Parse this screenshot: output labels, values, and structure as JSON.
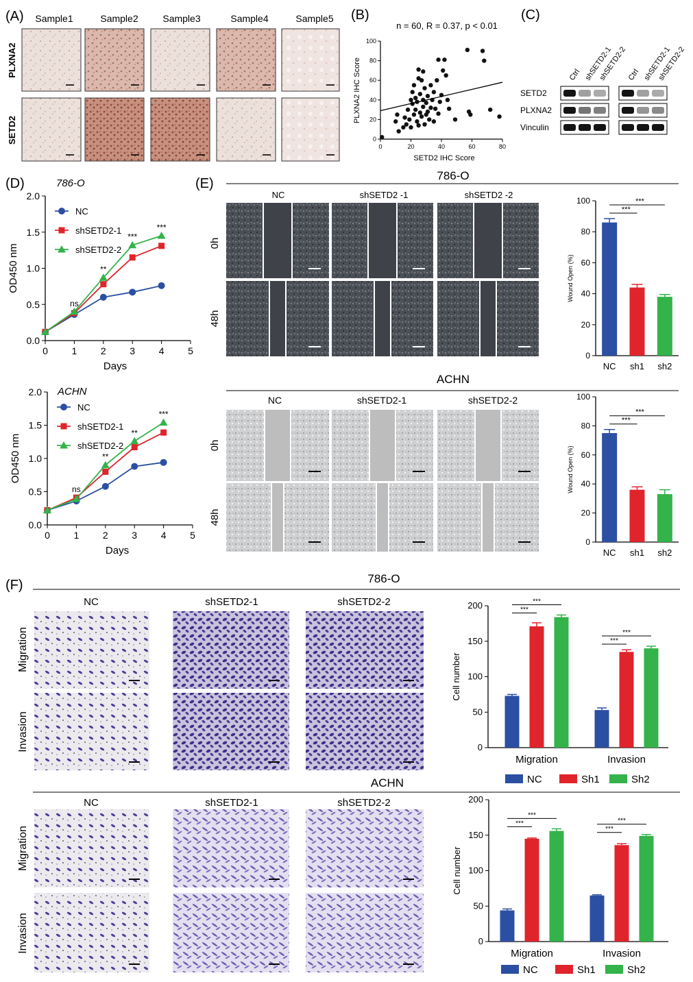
{
  "panels": {
    "a": "(A)",
    "b": "(B)",
    "c": "(C)",
    "d": "(D)",
    "e": "(E)",
    "f": "(F)"
  },
  "colors": {
    "blue": "#2b4fa3",
    "red": "#e0242b",
    "green": "#33b34a",
    "black": "#1a1a1a",
    "ihc_light": "#e9d9d3",
    "ihc_dark": "#b57b68",
    "scratch_dark": "#3f4248",
    "scratch_light": "#c9c9c9",
    "crystal": "#5b4fa5"
  },
  "panel_a": {
    "samples": [
      "Sample1",
      "Sample2",
      "Sample3",
      "Sample4",
      "Sample5"
    ],
    "rows": [
      "PLXNA2",
      "SETD2"
    ]
  },
  "panel_c": {
    "lane_labels": [
      "Ctrl",
      "shSETD2-1",
      "shSETD2-2"
    ],
    "proteins": [
      "SETD2",
      "PLXNA2",
      "Vinculin"
    ],
    "band_intensity": {
      "SETD2": [
        1.0,
        0.35,
        0.3,
        1.0,
        0.35,
        0.3
      ],
      "PLXNA2": [
        1.0,
        0.55,
        0.5,
        1.0,
        0.4,
        0.45
      ],
      "Vinculin": [
        1.0,
        1.0,
        1.0,
        1.0,
        1.0,
        1.0
      ]
    }
  },
  "panel_e": {
    "cell_786o": "786-O",
    "cell_achn": "ACHN",
    "groups_786o": [
      "NC",
      "shSETD2 -1",
      "shSETD2 -2"
    ],
    "groups_achn": [
      "NC",
      "shSETD2-1",
      "shSETD2-2"
    ],
    "times": [
      "0h",
      "48h"
    ]
  },
  "panel_f": {
    "cell_786o": "786-O",
    "cell_achn": "ACHN",
    "groups": [
      "NC",
      "shSETD2-1",
      "shSETD2-2"
    ],
    "rows": [
      "Migration",
      "Invasion"
    ]
  },
  "chart_data": [
    {
      "id": "B",
      "type": "scatter",
      "title": "n = 60, R = 0.37, p < 0.01",
      "xlabel": "SETD2 IHC Score",
      "ylabel": "PLXNA2 IHC Score",
      "xlim": [
        0,
        80
      ],
      "ylim": [
        0,
        100
      ],
      "xticks": [
        0,
        20,
        40,
        60,
        80
      ],
      "yticks": [
        0,
        20,
        40,
        60,
        80,
        100
      ],
      "trendline": [
        [
          0,
          29
        ],
        [
          80,
          58
        ]
      ],
      "points": [
        [
          1,
          2
        ],
        [
          10,
          18
        ],
        [
          11,
          25
        ],
        [
          12,
          8
        ],
        [
          15,
          12
        ],
        [
          16,
          22
        ],
        [
          17,
          15
        ],
        [
          18,
          30
        ],
        [
          19,
          20
        ],
        [
          20,
          12
        ],
        [
          20,
          40
        ],
        [
          21,
          36
        ],
        [
          21,
          48
        ],
        [
          22,
          25
        ],
        [
          22,
          55
        ],
        [
          23,
          30
        ],
        [
          23,
          42
        ],
        [
          24,
          18
        ],
        [
          24,
          38
        ],
        [
          25,
          14
        ],
        [
          25,
          62
        ],
        [
          25,
          71
        ],
        [
          26,
          27
        ],
        [
          26,
          46
        ],
        [
          27,
          23
        ],
        [
          27,
          60
        ],
        [
          28,
          33
        ],
        [
          28,
          40
        ],
        [
          28,
          69
        ],
        [
          29,
          15
        ],
        [
          29,
          52
        ],
        [
          30,
          25
        ],
        [
          30,
          37
        ],
        [
          31,
          28
        ],
        [
          31,
          44
        ],
        [
          32,
          20
        ],
        [
          33,
          32
        ],
        [
          33,
          55
        ],
        [
          34,
          40
        ],
        [
          35,
          18
        ],
        [
          35,
          48
        ],
        [
          36,
          31
        ],
        [
          37,
          60
        ],
        [
          38,
          26
        ],
        [
          38,
          81
        ],
        [
          39,
          38
        ],
        [
          40,
          45
        ],
        [
          41,
          70
        ],
        [
          42,
          81
        ],
        [
          43,
          65
        ],
        [
          44,
          40
        ],
        [
          45,
          31
        ],
        [
          49,
          20
        ],
        [
          57,
          91
        ],
        [
          58,
          28
        ],
        [
          59,
          25
        ],
        [
          67,
          90
        ],
        [
          68,
          80
        ],
        [
          72,
          30
        ],
        [
          78,
          23
        ]
      ]
    },
    {
      "id": "D-786O",
      "type": "line",
      "title": "786-O",
      "xlabel": "Days",
      "ylabel": "OD450 nm",
      "xlim": [
        0,
        5
      ],
      "ylim": [
        0,
        2.0
      ],
      "xticks": [
        0,
        1,
        2,
        3,
        4,
        5
      ],
      "yticks": [
        0.0,
        0.5,
        1.0,
        1.5,
        2.0
      ],
      "ytick_labels": [
        "0.0",
        "0.5",
        "1.0",
        "1.5",
        "2.0"
      ],
      "x": [
        0,
        1,
        2,
        3,
        4
      ],
      "series": [
        {
          "name": "NC",
          "values": [
            0.12,
            0.36,
            0.6,
            0.67,
            0.76
          ]
        },
        {
          "name": "shSETD2-1",
          "values": [
            0.12,
            0.38,
            0.78,
            1.15,
            1.31
          ]
        },
        {
          "name": "shSETD2-2",
          "values": [
            0.12,
            0.4,
            0.87,
            1.32,
            1.45
          ]
        }
      ],
      "annotations": [
        {
          "x": 1,
          "text": "ns"
        },
        {
          "x": 2,
          "text": "**"
        },
        {
          "x": 3,
          "text": "***"
        },
        {
          "x": 4,
          "text": "***"
        }
      ]
    },
    {
      "id": "D-ACHN",
      "type": "line",
      "title": "ACHN",
      "xlabel": "Days",
      "ylabel": "OD450 nm",
      "xlim": [
        0,
        5
      ],
      "ylim": [
        0,
        2.0
      ],
      "xticks": [
        0,
        1,
        2,
        3,
        4,
        5
      ],
      "yticks": [
        0.0,
        0.5,
        1.0,
        1.5,
        2.0
      ],
      "ytick_labels": [
        "0.0",
        "0.5",
        "1.0",
        "1.5",
        "2.0"
      ],
      "x": [
        0,
        1,
        2,
        3,
        4
      ],
      "series": [
        {
          "name": "NC",
          "values": [
            0.22,
            0.36,
            0.58,
            0.88,
            0.94
          ]
        },
        {
          "name": "shSETD2-1",
          "values": [
            0.22,
            0.41,
            0.8,
            1.17,
            1.39
          ]
        },
        {
          "name": "shSETD2-2",
          "values": [
            0.22,
            0.39,
            0.9,
            1.26,
            1.54
          ]
        }
      ],
      "annotations": [
        {
          "x": 1,
          "text": "ns"
        },
        {
          "x": 2,
          "text": "**"
        },
        {
          "x": 3,
          "text": "**"
        },
        {
          "x": 4,
          "text": "***"
        }
      ]
    },
    {
      "id": "E-786O",
      "type": "bar",
      "ylabel": "Wound Open (%)",
      "categories": [
        "NC",
        "sh1",
        "sh2"
      ],
      "values": [
        86,
        44,
        38
      ],
      "errors": [
        2.5,
        2,
        1.5
      ],
      "ylim": [
        0,
        100
      ],
      "yticks": [
        0,
        20,
        40,
        60,
        80,
        100
      ],
      "significance": [
        "***",
        "***"
      ]
    },
    {
      "id": "E-ACHN",
      "type": "bar",
      "ylabel": "Wound Open (%)",
      "categories": [
        "NC",
        "sh1",
        "sh2"
      ],
      "values": [
        75,
        36,
        33
      ],
      "errors": [
        2.5,
        2,
        3
      ],
      "ylim": [
        0,
        100
      ],
      "yticks": [
        0,
        20,
        40,
        60,
        80,
        100
      ],
      "significance": [
        "***",
        "***"
      ]
    },
    {
      "id": "F-786O",
      "type": "bar",
      "ylabel": "Cell number",
      "categories": [
        "Migration",
        "Invasion"
      ],
      "series": [
        {
          "name": "NC",
          "values": [
            73,
            53
          ],
          "errors": [
            2,
            3
          ]
        },
        {
          "name": "Sh1",
          "values": [
            171,
            135
          ],
          "errors": [
            5,
            3
          ]
        },
        {
          "name": "Sh2",
          "values": [
            184,
            140
          ],
          "errors": [
            3,
            3
          ]
        }
      ],
      "ylim": [
        0,
        200
      ],
      "yticks": [
        0,
        50,
        100,
        150,
        200
      ],
      "significance": [
        "***",
        "***",
        "***",
        "***"
      ],
      "legend": "bottom"
    },
    {
      "id": "F-ACHN",
      "type": "bar",
      "ylabel": "Cell number",
      "categories": [
        "Migration",
        "Invasion"
      ],
      "series": [
        {
          "name": "NC",
          "values": [
            44,
            65
          ],
          "errors": [
            2,
            1
          ]
        },
        {
          "name": "Sh1",
          "values": [
            145,
            136
          ],
          "errors": [
            1,
            2
          ]
        },
        {
          "name": "Sh2",
          "values": [
            156,
            149
          ],
          "errors": [
            3,
            2
          ]
        }
      ],
      "ylim": [
        0,
        200
      ],
      "yticks": [
        0,
        50,
        100,
        150,
        200
      ],
      "significance": [
        "***",
        "***",
        "***",
        "***"
      ],
      "legend": "bottom"
    }
  ]
}
